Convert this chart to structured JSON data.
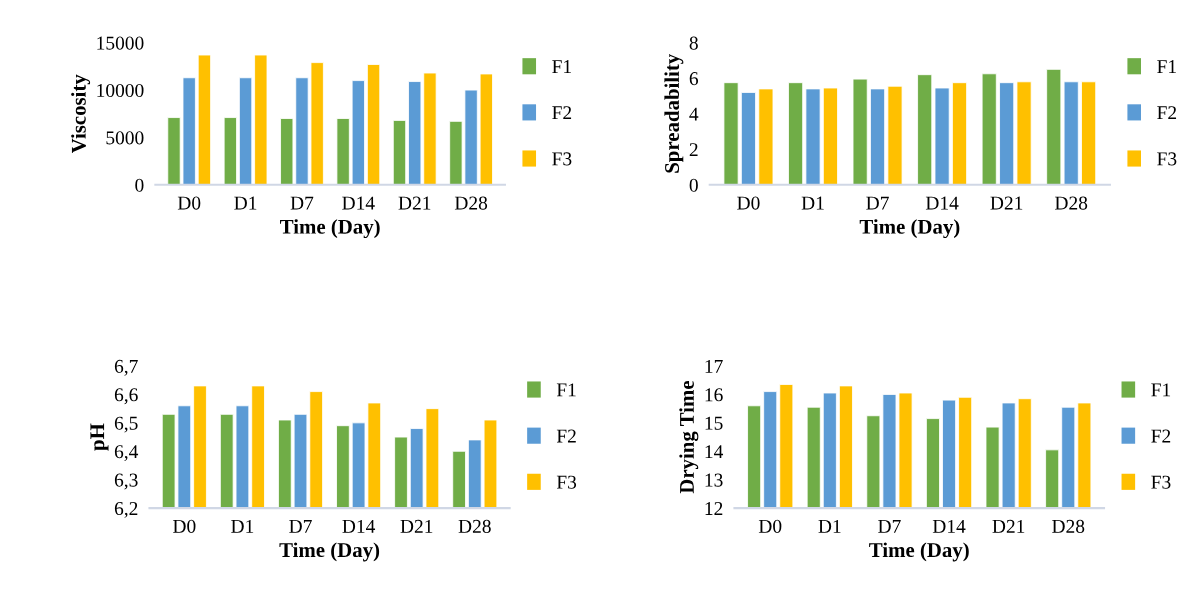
{
  "chart_data": [
    {
      "type": "bar",
      "ylabel": "Viscosity",
      "xlabel": "Time (Day)",
      "categories": [
        "D0",
        "D1",
        "D7",
        "D14",
        "D21",
        "D28"
      ],
      "ylim": [
        0,
        15000
      ],
      "yticks": [
        0,
        5000,
        10000,
        15000
      ],
      "grid": false,
      "legend": "right",
      "series": [
        {
          "name": "F1",
          "color": "#70ad47",
          "values": [
            7100,
            7100,
            7000,
            7000,
            6800,
            6700
          ]
        },
        {
          "name": "F2",
          "color": "#5b9bd5",
          "values": [
            11300,
            11300,
            11300,
            11000,
            10900,
            10000
          ]
        },
        {
          "name": "F3",
          "color": "#ffc000",
          "values": [
            13700,
            13700,
            12900,
            12700,
            11800,
            11700
          ]
        }
      ]
    },
    {
      "type": "bar",
      "ylabel": "Spreadability",
      "xlabel": "Time (Day)",
      "categories": [
        "D0",
        "D1",
        "D7",
        "D14",
        "D21",
        "D28"
      ],
      "ylim": [
        0,
        8
      ],
      "yticks": [
        0,
        2,
        4,
        6,
        8
      ],
      "grid": false,
      "legend": "right",
      "series": [
        {
          "name": "F1",
          "color": "#70ad47",
          "values": [
            5.75,
            5.75,
            5.95,
            6.2,
            6.25,
            6.5
          ]
        },
        {
          "name": "F2",
          "color": "#5b9bd5",
          "values": [
            5.2,
            5.4,
            5.4,
            5.45,
            5.75,
            5.8
          ]
        },
        {
          "name": "F3",
          "color": "#ffc000",
          "values": [
            5.4,
            5.45,
            5.55,
            5.75,
            5.8,
            5.8
          ]
        }
      ]
    },
    {
      "type": "bar",
      "ylabel": "pH",
      "xlabel": "Time (Day)",
      "categories": [
        "D0",
        "D1",
        "D7",
        "D14",
        "D21",
        "D28"
      ],
      "ylim": [
        6.2,
        6.7
      ],
      "yticks": [
        {
          "value": 6.2,
          "label": "6,2"
        },
        {
          "value": 6.3,
          "label": "6,3"
        },
        {
          "value": 6.4,
          "label": "6,4"
        },
        {
          "value": 6.5,
          "label": "6,5"
        },
        {
          "value": 6.6,
          "label": "6,6"
        },
        {
          "value": 6.7,
          "label": "6,7"
        }
      ],
      "grid": false,
      "legend": "right",
      "series": [
        {
          "name": "F1",
          "color": "#70ad47",
          "values": [
            6.53,
            6.53,
            6.51,
            6.49,
            6.45,
            6.4
          ]
        },
        {
          "name": "F2",
          "color": "#5b9bd5",
          "values": [
            6.56,
            6.56,
            6.53,
            6.5,
            6.48,
            6.44
          ]
        },
        {
          "name": "F3",
          "color": "#ffc000",
          "values": [
            6.63,
            6.63,
            6.61,
            6.57,
            6.55,
            6.51
          ]
        }
      ]
    },
    {
      "type": "bar",
      "ylabel": "Drying Time",
      "xlabel": "Time (Day)",
      "categories": [
        "D0",
        "D1",
        "D7",
        "D14",
        "D21",
        "D28"
      ],
      "ylim": [
        12,
        17
      ],
      "yticks": [
        12,
        13,
        14,
        15,
        16,
        17
      ],
      "grid": false,
      "legend": "right",
      "series": [
        {
          "name": "F1",
          "color": "#70ad47",
          "values": [
            15.6,
            15.55,
            15.25,
            15.15,
            14.85,
            14.05
          ]
        },
        {
          "name": "F2",
          "color": "#5b9bd5",
          "values": [
            16.1,
            16.05,
            16.0,
            15.8,
            15.7,
            15.55
          ]
        },
        {
          "name": "F3",
          "color": "#ffc000",
          "values": [
            16.35,
            16.3,
            16.05,
            15.9,
            15.85,
            15.7
          ]
        }
      ]
    }
  ]
}
